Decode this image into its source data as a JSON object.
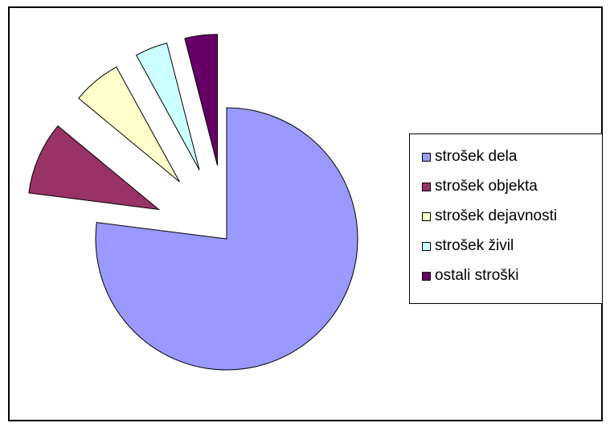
{
  "chart_data": {
    "type": "pie",
    "title": "",
    "exploded": true,
    "slices": [
      {
        "label": "strošek dela",
        "value": 77,
        "color": "#9999ff"
      },
      {
        "label": "strošek objekta",
        "value": 9,
        "color": "#993366"
      },
      {
        "label": "strošek dejavnosti",
        "value": 6,
        "color": "#ffffcc"
      },
      {
        "label": "strošek živil",
        "value": 4,
        "color": "#ccffff"
      },
      {
        "label": "ostali stroški",
        "value": 4,
        "color": "#660066"
      }
    ],
    "legend": {
      "position": "right"
    }
  }
}
